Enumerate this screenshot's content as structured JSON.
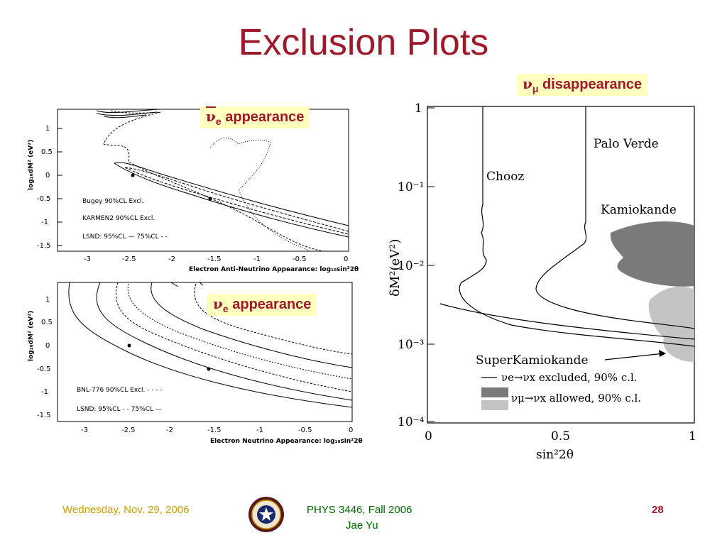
{
  "slide": {
    "title": "Exclusion Plots"
  },
  "labels": {
    "anti_nue": {
      "nu": "ν",
      "sub": "e",
      "text": " appearance"
    },
    "nue": {
      "nu": "ν",
      "sub": "e",
      "text": " appearance"
    },
    "numu": {
      "nu": "ν",
      "sub": "μ",
      "text": " disappearance"
    }
  },
  "footer": {
    "date": "Wednesday, Nov. 29, 2006",
    "course": "PHYS 3446, Fall 2006",
    "author": "Jae Yu",
    "page": "28"
  },
  "colors": {
    "title": "#9c1a2b",
    "label_bg": "#ffffc0",
    "footer_date": "#c8a000",
    "footer_course": "#006600",
    "page_number": "#9c1a2b"
  },
  "chart_data": [
    {
      "type": "line",
      "xlabel": "Electron Anti-Neutrino Appearance: log₁₀sin²2θ",
      "ylabel": "log₁₀dM² (eV²)",
      "xticks": [
        "-3",
        "-2.5",
        "-2",
        "-1.5",
        "-1",
        "-0.5",
        "0"
      ],
      "yticks": [
        "1",
        "0.5",
        "0",
        "-0.5",
        "-1",
        "-1.5"
      ],
      "xlim": [
        -3.3,
        0
      ],
      "ylim": [
        -1.6,
        1.4
      ],
      "legend": [
        "Bugey 90%CL Excl.",
        "KARMEN2 90%CL Excl.",
        "LSND: 95%CL — 75%CL - -"
      ],
      "legend_position": "bottom-left",
      "points": [
        {
          "x": -2.5,
          "y": 0.0
        },
        {
          "x": -1.6,
          "y": -0.5
        }
      ]
    },
    {
      "type": "line",
      "xlabel": "Electron Neutrino Appearance: log₁₀sin²2θ",
      "ylabel": "log₁₀dM² (eV²)",
      "xticks": [
        "-3",
        "-2.5",
        "-2",
        "-1.5",
        "-1",
        "-0.5",
        "0"
      ],
      "yticks": [
        "1",
        "0.5",
        "0",
        "-0.5",
        "-1",
        "-1.5"
      ],
      "xlim": [
        -3.3,
        0
      ],
      "ylim": [
        -1.6,
        1.4
      ],
      "legend": [
        "BNL-776 90%CL Excl. - - - -",
        "LSND: 95%CL - - 75%CL —"
      ],
      "legend_position": "bottom-left",
      "points": [
        {
          "x": -2.5,
          "y": 0.0
        },
        {
          "x": -1.6,
          "y": -0.5
        }
      ]
    },
    {
      "type": "line",
      "xlabel": "sin²2θ",
      "ylabel": "δM²(eV²)",
      "xticks": [
        "0",
        "0.5",
        "1"
      ],
      "yticks": [
        "1",
        "10⁻¹",
        "10⁻²",
        "10⁻³",
        "10⁻⁴"
      ],
      "xlim": [
        0,
        1
      ],
      "ylim": [
        0.0001,
        1
      ],
      "yscale": "log",
      "curve_labels": [
        "Palo Verde",
        "Chooz",
        "Kamiokande",
        "SuperKamiokande"
      ],
      "legend": [
        "νe→νx excluded, 90% c.l.",
        "νμ→νx allowed, 90% c.l."
      ],
      "legend_position": "bottom-right"
    }
  ]
}
